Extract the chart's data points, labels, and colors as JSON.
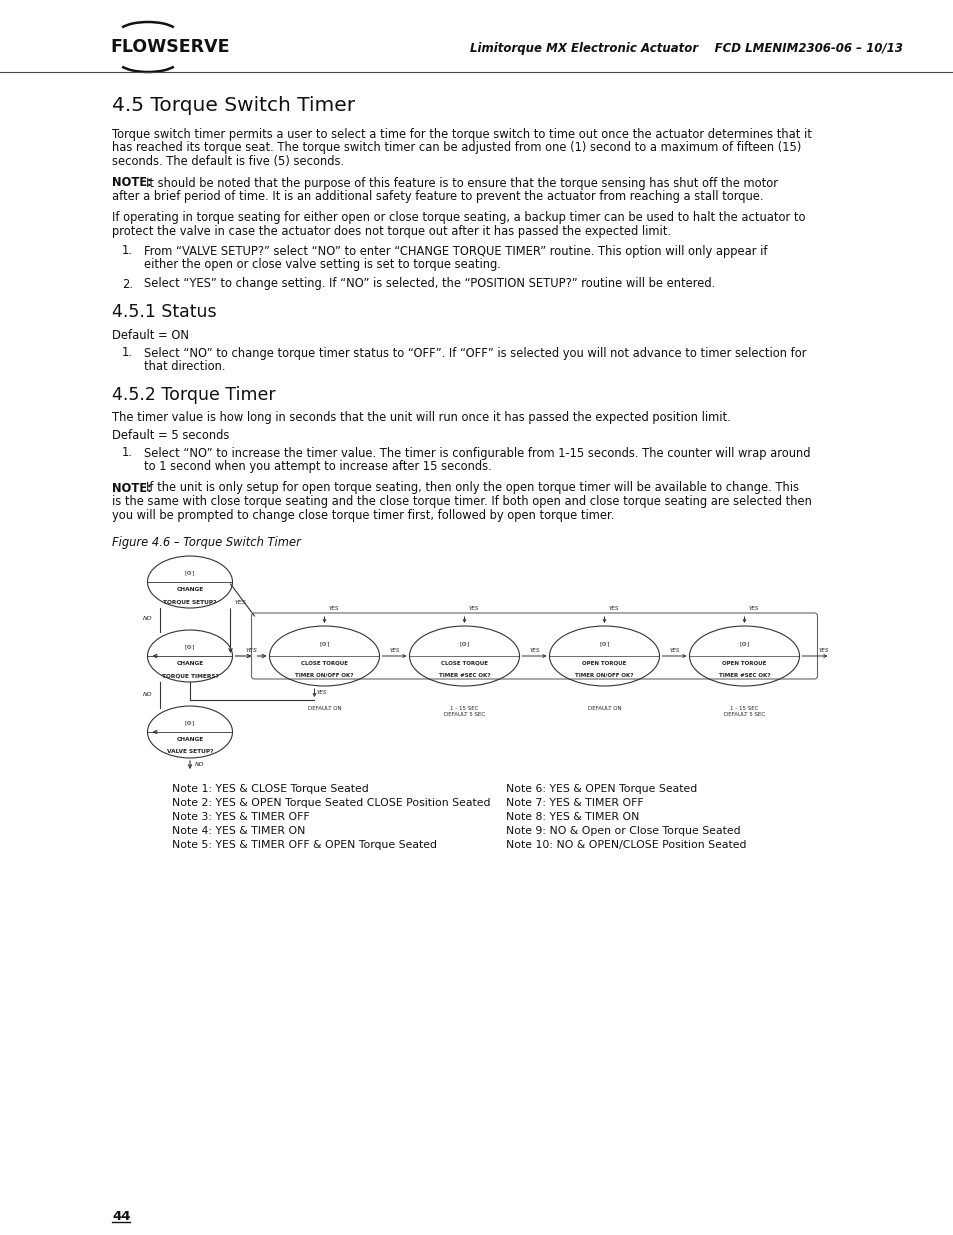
{
  "page_bg": "#ffffff",
  "header_text": "Limitorque MX Electronic Actuator    FCD LMENIM2306-06 – 10/13",
  "page_number": "44",
  "title_45": "4.5 Torque Switch Timer",
  "body_45_lines": [
    "Torque switch timer permits a user to select a time for the torque switch to time out once the actuator determines that it",
    "has reached its torque seat. The torque switch timer can be adjusted from one (1) second to a maximum of fifteen (15)",
    "seconds. The default is five (5) seconds."
  ],
  "note1_rest": "It should be noted that the purpose of this feature is to ensure that the torque sensing has shut off the motor",
  "note1_line2": "after a brief period of time. It is an additional safety feature to prevent the actuator from reaching a stall torque.",
  "body_45b_lines": [
    "If operating in torque seating for either open or close torque seating, a backup timer can be used to halt the actuator to",
    "protect the valve in case the actuator does not torque out after it has passed the expected limit."
  ],
  "list_45_1a": "From “VALVE SETUP?” select “NO” to enter “CHANGE TORQUE TIMER” routine. This option will only appear if",
  "list_45_1b": "either the open or close valve setting is set to torque seating.",
  "list_45_2": "Select “YES” to change setting. If “NO” is selected, the “POSITION SETUP?” routine will be entered.",
  "title_451": "4.5.1 Status",
  "default_451": "Default = ON",
  "list_451_1a": "Select “NO” to change torque timer status to “OFF”. If “OFF” is selected you will not advance to timer selection for",
  "list_451_1b": "that direction.",
  "title_452": "4.5.2 Torque Timer",
  "body_452": "The timer value is how long in seconds that the unit will run once it has passed the expected position limit.",
  "default_452": "Default = 5 seconds",
  "list_452_1a": "Select “NO” to increase the timer value. The timer is configurable from 1-15 seconds. The counter will wrap around",
  "list_452_1b": "to 1 second when you attempt to increase after 15 seconds.",
  "note2_rest_1": "If the unit is only setup for open torque seating, then only the open torque timer will be available to change. This",
  "note2_rest_2": "is the same with close torque seating and the close torque timer. If both open and close torque seating are selected then",
  "note2_rest_3": "you will be prompted to change close torque timer first, followed by open torque timer.",
  "figure_caption": "Figure 4.6 – Torque Switch Timer",
  "notes_left": [
    "Note 1: YES & CLOSE Torque Seated",
    "Note 2: YES & OPEN Torque Seated CLOSE Position Seated",
    "Note 3: YES & TIMER OFF",
    "Note 4: YES & TIMER ON",
    "Note 5: YES & TIMER OFF & OPEN Torque Seated"
  ],
  "notes_right": [
    "Note 6: YES & OPEN Torque Seated",
    "Note 7: YES & TIMER OFF",
    "Note 8: YES & TIMER ON",
    "Note 9: NO & Open or Close Torque Seated",
    "Note 10: NO & OPEN/CLOSE Position Seated"
  ]
}
